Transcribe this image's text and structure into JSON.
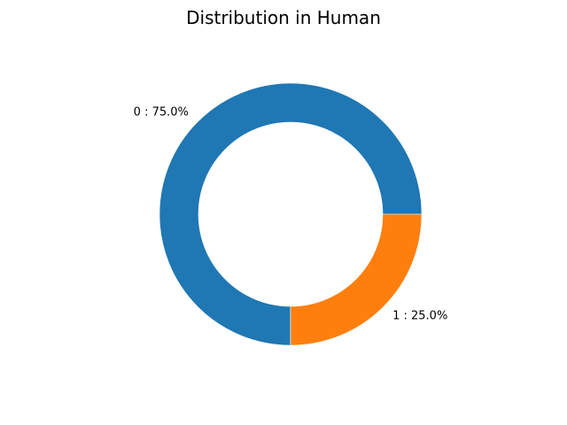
{
  "chart_data": {
    "type": "pie",
    "variant": "donut",
    "title": "Distribution in Human",
    "slices": [
      {
        "category": "0",
        "value": 75.0,
        "label": "0 : 75.0%",
        "color": "#1f77b4"
      },
      {
        "category": "1",
        "value": 25.0,
        "label": "1 : 25.0%",
        "color": "#ff7f0e"
      }
    ],
    "start_angle_deg": 0,
    "direction": "counterclockwise",
    "legend": "none",
    "grid": false
  }
}
